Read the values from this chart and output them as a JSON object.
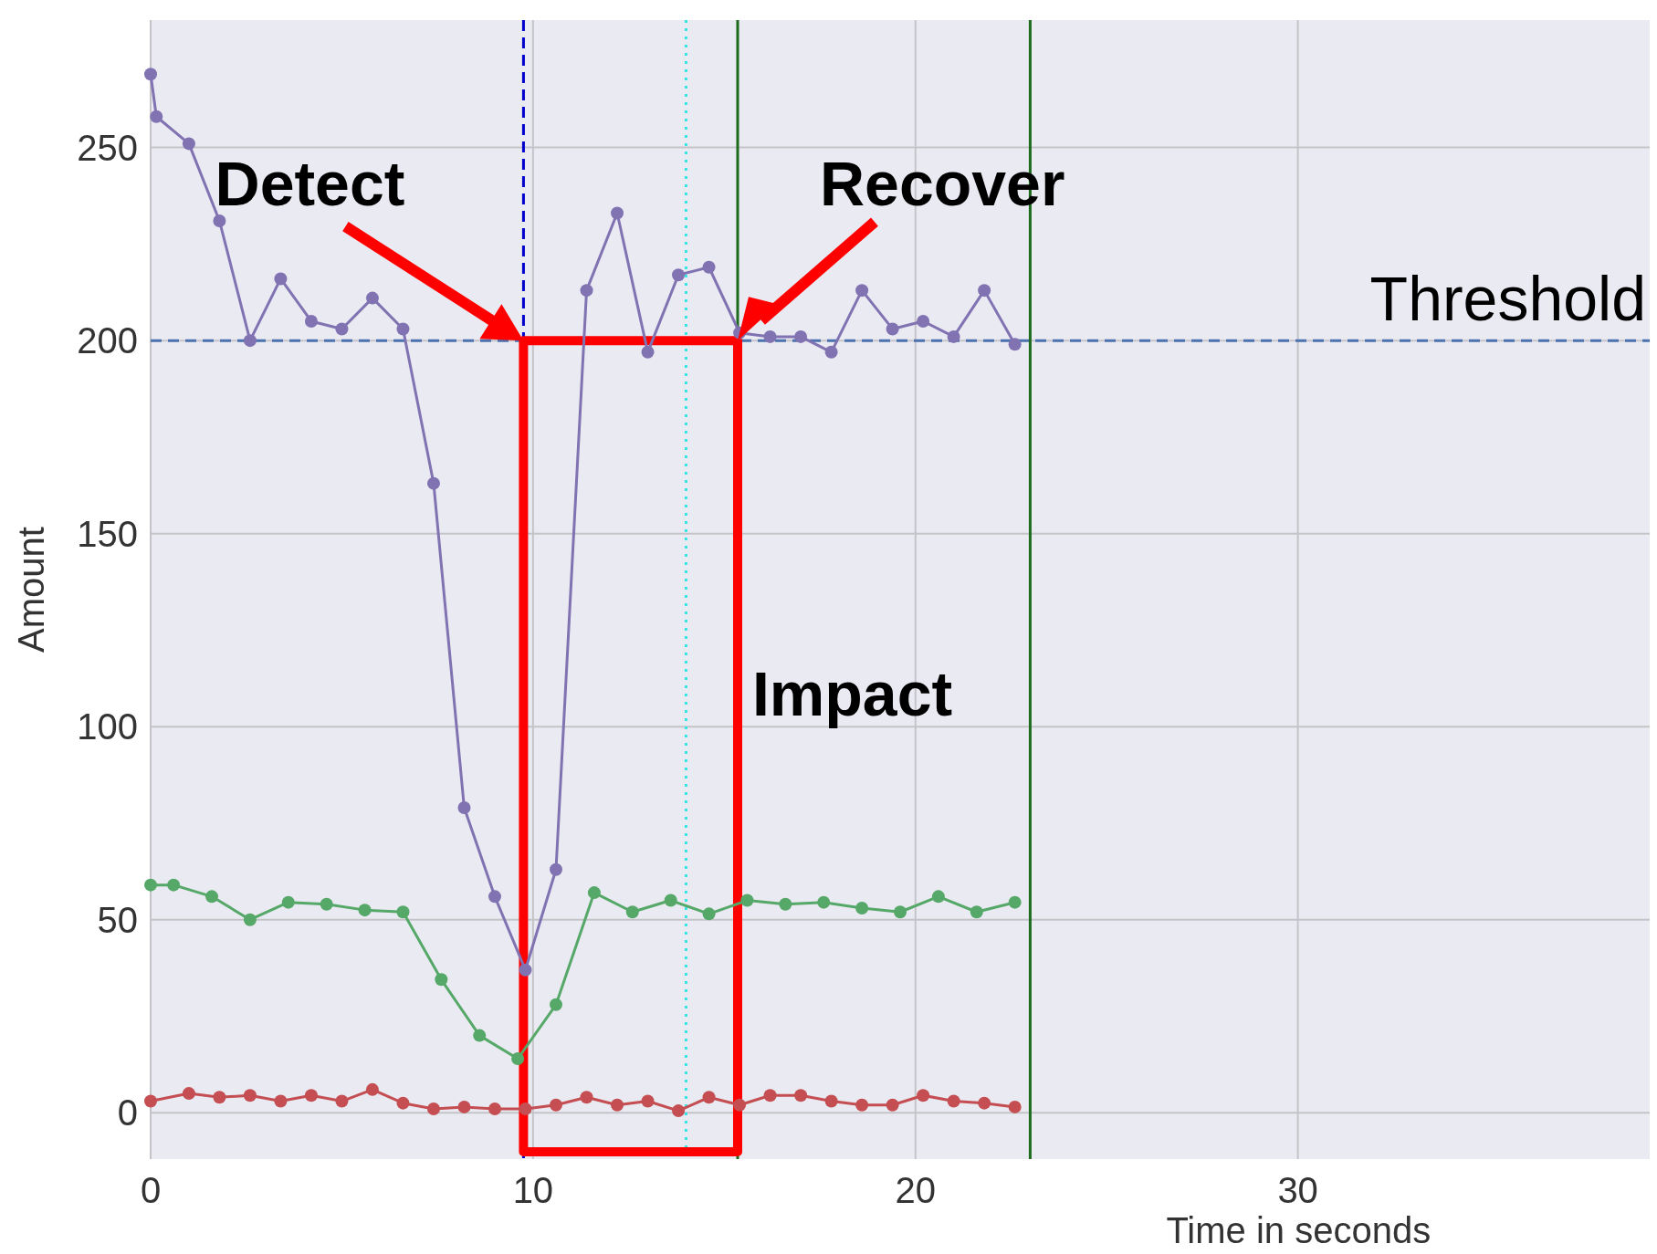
{
  "chart_data": {
    "type": "line",
    "xlabel": "Time in seconds",
    "ylabel": "Amount",
    "xlim": [
      0,
      39.2
    ],
    "xticks": [
      0,
      10,
      20,
      30
    ],
    "ylim": [
      -12,
      283
    ],
    "yticks": [
      0,
      50,
      100,
      150,
      200,
      250
    ],
    "grid": true,
    "marker": "circle",
    "line_style": "solid",
    "series": [
      {
        "color": "#8172b2",
        "x": [
          0,
          0.15,
          1.0,
          1.8,
          2.6,
          3.4,
          4.2,
          5.0,
          5.8,
          6.6,
          7.4,
          8.2,
          9.0,
          9.8,
          10.6,
          11.4,
          12.2,
          13.0,
          13.8,
          14.6,
          15.4,
          16.2,
          17.0,
          17.8,
          18.6,
          19.4,
          20.2,
          21.0,
          21.8,
          22.6
        ],
        "values": [
          269,
          258,
          251,
          231,
          200,
          216,
          205,
          203,
          211,
          203,
          163,
          79,
          56,
          37,
          63,
          213,
          233,
          197,
          217,
          219,
          202,
          201,
          201,
          197,
          213,
          203,
          205,
          201,
          213,
          199
        ]
      },
      {
        "color": "#55a868",
        "x": [
          0,
          0.6,
          1.6,
          2.6,
          3.6,
          4.6,
          5.6,
          6.6,
          7.6,
          8.6,
          9.6,
          10.6,
          11.6,
          12.6,
          13.6,
          14.6,
          15.6,
          16.6,
          17.6,
          18.6,
          19.6,
          20.6,
          21.6,
          22.6
        ],
        "values": [
          59,
          59,
          56,
          50,
          54.5,
          54,
          52.5,
          52,
          34.5,
          20,
          14,
          28,
          57,
          52,
          55,
          51.5,
          55,
          54,
          54.5,
          53,
          52,
          56,
          52,
          54.5
        ]
      },
      {
        "color": "#c44e52",
        "x": [
          0,
          1.0,
          1.8,
          2.6,
          3.4,
          4.2,
          5.0,
          5.8,
          6.6,
          7.4,
          8.2,
          9.0,
          9.8,
          10.6,
          11.4,
          12.2,
          13.0,
          13.8,
          14.6,
          15.4,
          16.2,
          17.0,
          17.8,
          18.6,
          19.4,
          20.2,
          21.0,
          21.8,
          22.6
        ],
        "values": [
          3,
          5,
          4,
          4.5,
          3,
          4.5,
          3,
          6,
          2.5,
          1,
          1.5,
          1,
          1,
          2,
          4,
          2,
          3,
          0.5,
          4,
          2,
          4.5,
          4.5,
          3,
          2,
          2,
          4.5,
          3,
          2.5,
          1.5
        ]
      }
    ],
    "ref_lines": [
      {
        "axis": "y",
        "value": 200,
        "label": "Threshold",
        "color": "#4c72b0",
        "line_style": "dashed"
      },
      {
        "axis": "x",
        "value": 9.75,
        "color": "#0000cc",
        "line_style": "dashed"
      },
      {
        "axis": "x",
        "value": 14.0,
        "color": "#33e6e6",
        "line_style": "dotted"
      },
      {
        "axis": "x",
        "value": 15.35,
        "color": "#1e6b1e",
        "line_style": "solid"
      },
      {
        "axis": "x",
        "value": 23.0,
        "color": "#1e6b1e",
        "line_style": "solid"
      }
    ],
    "annotations": [
      {
        "text": "Detect",
        "x": 9.75,
        "y": 200
      },
      {
        "text": "Recover",
        "x": 15.35,
        "y": 200
      },
      "Impact"
    ]
  }
}
